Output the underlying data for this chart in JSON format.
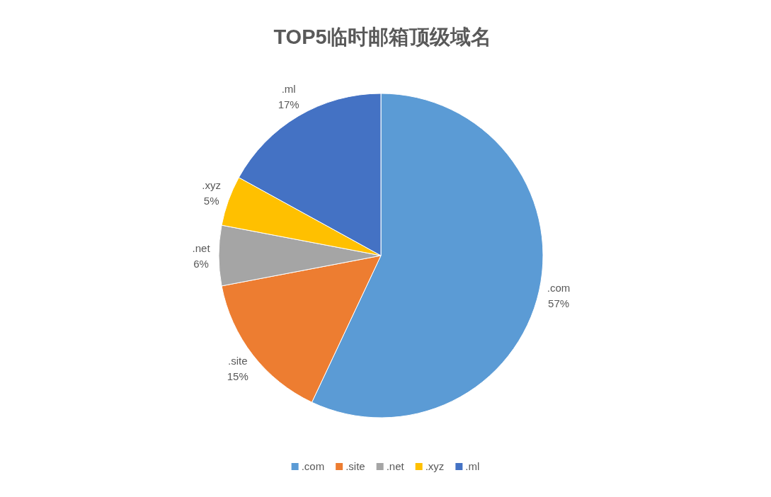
{
  "chart_data": {
    "type": "pie",
    "title": "TOP5临时邮箱顶级域名",
    "categories": [
      ".com",
      ".site",
      ".net",
      ".xyz",
      ".ml"
    ],
    "values": [
      57,
      15,
      6,
      5,
      17
    ],
    "colors": [
      "#5b9bd5",
      "#ed7d31",
      "#a5a5a5",
      "#ffc000",
      "#4472c4"
    ],
    "value_labels": [
      "57%",
      "15%",
      "6%",
      "5%",
      "17%"
    ],
    "legend": "bottom"
  }
}
